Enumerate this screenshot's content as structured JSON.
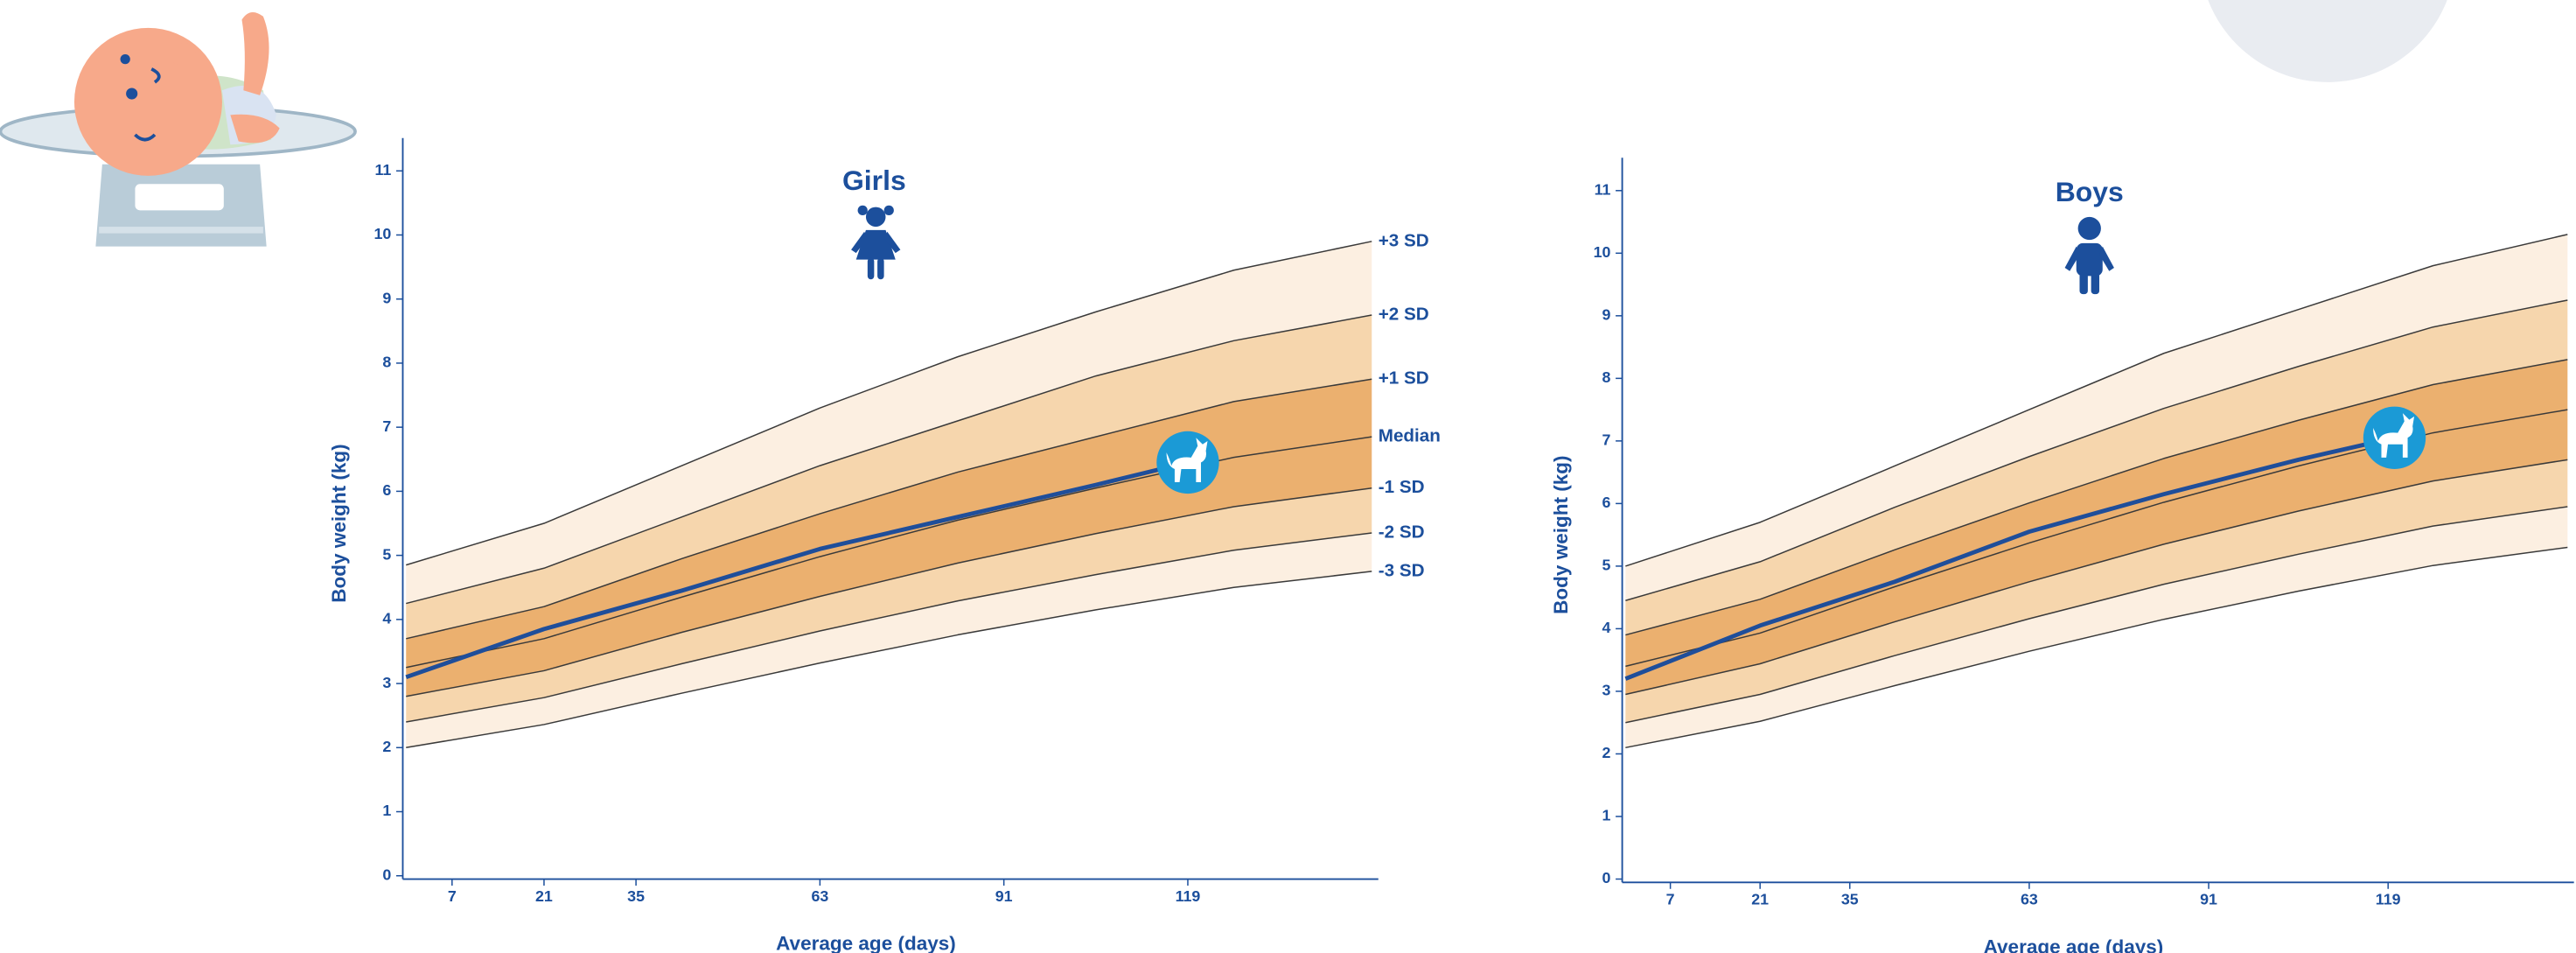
{
  "chart_data": [
    {
      "type": "line",
      "title": "Girls",
      "xlabel": "Average age (days)",
      "ylabel": "Body weight (kg)",
      "x": [
        0,
        21,
        42,
        63,
        84,
        105,
        126,
        147
      ],
      "xlim": [
        0,
        148
      ],
      "ylim": [
        0,
        11
      ],
      "xticks": [
        7,
        21,
        35,
        63,
        91,
        119
      ],
      "yticks": [
        0,
        1,
        2,
        3,
        4,
        5,
        6,
        7,
        8,
        9,
        10,
        11
      ],
      "band_colors": [
        "#fcefe1",
        "#f6d6ad",
        "#ebb06f",
        "#ebb06f",
        "#f6d6ad",
        "#fcefe1"
      ],
      "series": [
        {
          "name": "+3 SD",
          "color": "#3a3a3a",
          "values": [
            4.85,
            5.5,
            6.4,
            7.3,
            8.1,
            8.8,
            9.45,
            9.9
          ]
        },
        {
          "name": "+2 SD",
          "color": "#3a3a3a",
          "values": [
            4.25,
            4.8,
            5.6,
            6.4,
            7.1,
            7.8,
            8.35,
            8.75
          ]
        },
        {
          "name": "+1 SD",
          "color": "#3a3a3a",
          "values": [
            3.7,
            4.2,
            4.95,
            5.65,
            6.3,
            6.85,
            7.4,
            7.75
          ]
        },
        {
          "name": "Median",
          "color": "#3a3a3a",
          "values": [
            3.25,
            3.7,
            4.35,
            4.98,
            5.55,
            6.05,
            6.53,
            6.85
          ]
        },
        {
          "name": "-1 SD",
          "color": "#3a3a3a",
          "values": [
            2.8,
            3.2,
            3.8,
            4.36,
            4.88,
            5.34,
            5.76,
            6.05
          ]
        },
        {
          "name": "-2 SD",
          "color": "#3a3a3a",
          "values": [
            2.4,
            2.78,
            3.31,
            3.82,
            4.29,
            4.7,
            5.08,
            5.35
          ]
        },
        {
          "name": "-3 SD",
          "color": "#3a3a3a",
          "values": [
            2.0,
            2.36,
            2.85,
            3.32,
            3.76,
            4.15,
            4.5,
            4.75
          ]
        },
        {
          "color": "#1f4e9a",
          "x": [
            0,
            21,
            42,
            63,
            84,
            105,
            119
          ],
          "values": [
            3.1,
            3.85,
            4.45,
            5.1,
            5.6,
            6.1,
            6.45
          ]
        }
      ]
    },
    {
      "type": "line",
      "title": "Boys",
      "xlabel": "Average age (days)",
      "ylabel": "Body weight (kg)",
      "x": [
        0,
        21,
        42,
        63,
        84,
        105,
        126,
        147
      ],
      "xlim": [
        0,
        148
      ],
      "ylim": [
        0,
        11
      ],
      "xticks": [
        7,
        21,
        35,
        63,
        91,
        119
      ],
      "yticks": [
        0,
        1,
        2,
        3,
        4,
        5,
        6,
        7,
        8,
        9,
        10,
        11
      ],
      "band_colors": [
        "#fcefe1",
        "#f6d6ad",
        "#ebb06f",
        "#ebb06f",
        "#f6d6ad",
        "#fcefe1"
      ],
      "series": [
        {
          "color": "#3a3a3a",
          "values": [
            5.0,
            5.7,
            6.6,
            7.5,
            8.4,
            9.1,
            9.8,
            10.3
          ]
        },
        {
          "color": "#3a3a3a",
          "values": [
            4.45,
            5.07,
            5.94,
            6.75,
            7.52,
            8.19,
            8.82,
            9.25
          ]
        },
        {
          "color": "#3a3a3a",
          "values": [
            3.9,
            4.47,
            5.26,
            6.01,
            6.72,
            7.33,
            7.9,
            8.3
          ]
        },
        {
          "color": "#3a3a3a",
          "values": [
            3.4,
            3.93,
            4.67,
            5.37,
            6.02,
            6.6,
            7.13,
            7.5
          ]
        },
        {
          "color": "#3a3a3a",
          "values": [
            2.95,
            3.44,
            4.11,
            4.75,
            5.35,
            5.88,
            6.36,
            6.7
          ]
        },
        {
          "color": "#3a3a3a",
          "values": [
            2.5,
            2.95,
            3.57,
            4.16,
            4.71,
            5.19,
            5.64,
            5.95
          ]
        },
        {
          "color": "#3a3a3a",
          "values": [
            2.1,
            2.52,
            3.09,
            3.64,
            4.15,
            4.6,
            5.01,
            5.3
          ]
        },
        {
          "color": "#1f4e9a",
          "x": [
            0,
            21,
            42,
            63,
            84,
            105,
            120
          ],
          "values": [
            3.2,
            4.05,
            4.75,
            5.55,
            6.15,
            6.7,
            7.05
          ]
        }
      ]
    }
  ]
}
